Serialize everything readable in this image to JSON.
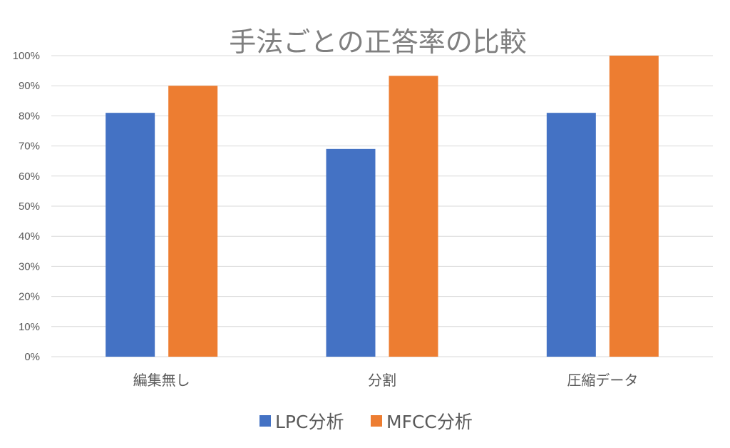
{
  "chart_data": {
    "type": "bar",
    "title": "手法ごとの正答率の比較",
    "categories": [
      "編集無し",
      "分割",
      "圧縮データ"
    ],
    "series": [
      {
        "name": "LPC分析",
        "color": "#4472c4",
        "values": [
          81,
          69,
          81
        ]
      },
      {
        "name": "MFCC分析",
        "color": "#ed7d31",
        "values": [
          90,
          93.3,
          100
        ]
      }
    ],
    "ylim": [
      0,
      100
    ],
    "yticks": [
      "0%",
      "10%",
      "20%",
      "30%",
      "40%",
      "50%",
      "60%",
      "70%",
      "80%",
      "90%",
      "100%"
    ],
    "xlabel": "",
    "ylabel": "",
    "grid": true,
    "legend": "bottom"
  }
}
